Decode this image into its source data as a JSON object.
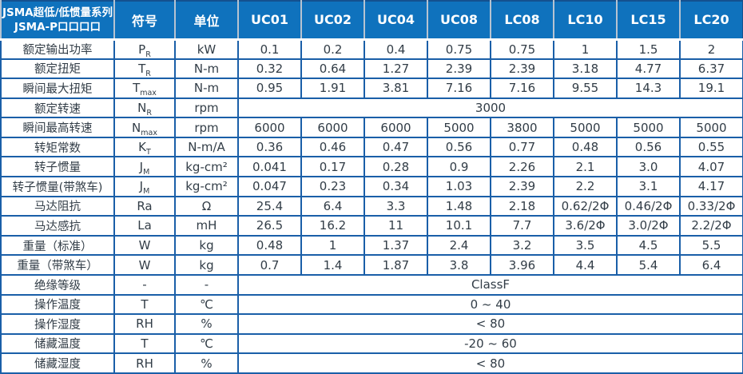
{
  "header": {
    "title_line1": "JSMA超低/低惯量系列",
    "title_line2": "JSMA-P口口口口",
    "symbol_label": "符号",
    "unit_label": "单位",
    "models": [
      "UC01",
      "UC02",
      "UC04",
      "UC08",
      "LC08",
      "LC10",
      "LC15",
      "LC20"
    ]
  },
  "colors": {
    "header_bg": "#0f72bd",
    "grid_border": "#1a5fa8",
    "outer_border": "#14518f",
    "header_divider": "#b7c3d1",
    "text": "#323d47"
  },
  "rows": [
    {
      "label": "额定输出功率",
      "symbol": "P",
      "symbol_sub": "R",
      "unit": "kW",
      "values": [
        "0.1",
        "0.2",
        "0.4",
        "0.75",
        "0.75",
        "1",
        "1.5",
        "2"
      ]
    },
    {
      "label": "额定扭矩",
      "symbol": "T",
      "symbol_sub": "R",
      "unit": "N-m",
      "values": [
        "0.32",
        "0.64",
        "1.27",
        "2.39",
        "2.39",
        "3.18",
        "4.77",
        "6.37"
      ]
    },
    {
      "label": "瞬间最大扭矩",
      "symbol": "T",
      "symbol_sub": "max",
      "unit": "N-m",
      "values": [
        "0.95",
        "1.91",
        "3.81",
        "7.16",
        "7.16",
        "9.55",
        "14.3",
        "19.1"
      ]
    },
    {
      "label": "额定转速",
      "symbol": "N",
      "symbol_sub": "R",
      "unit": "rpm",
      "merged": "3000"
    },
    {
      "label": "瞬间最高转速",
      "symbol": "N",
      "symbol_sub": "max",
      "unit": "rpm",
      "values": [
        "6000",
        "6000",
        "6000",
        "5000",
        "3800",
        "5000",
        "5000",
        "5000"
      ]
    },
    {
      "label": "转矩常数",
      "symbol": "K",
      "symbol_sub": "T",
      "unit": "N-m/A",
      "values": [
        "0.36",
        "0.46",
        "0.47",
        "0.56",
        "0.77",
        "0.48",
        "0.56",
        "0.55"
      ]
    },
    {
      "label": "转子惯量",
      "symbol": "J",
      "symbol_sub": "M",
      "unit": "kg-cm²",
      "values": [
        "0.041",
        "0.17",
        "0.28",
        "0.9",
        "2.26",
        "2.1",
        "3.0",
        "4.07"
      ]
    },
    {
      "label": "转子惯量(带煞车)",
      "symbol": "J",
      "symbol_sub": "M",
      "unit": "kg-cm²",
      "values": [
        "0.047",
        "0.23",
        "0.34",
        "1.03",
        "2.39",
        "2.2",
        "3.1",
        "4.17"
      ]
    },
    {
      "label": "马达阻抗",
      "symbol": "Ra",
      "symbol_sub": "",
      "unit": "Ω",
      "values": [
        "25.4",
        "6.4",
        "3.3",
        "1.48",
        "2.18",
        "0.62/2Φ",
        "0.46/2Φ",
        "0.33/2Φ"
      ]
    },
    {
      "label": "马达感抗",
      "symbol": "La",
      "symbol_sub": "",
      "unit": "mH",
      "values": [
        "26.5",
        "16.2",
        "11",
        "10.1",
        "7.7",
        "3.6/2Φ",
        "3.0/2Φ",
        "2.2/2Φ"
      ]
    },
    {
      "label": "重量（标准）",
      "symbol": "W",
      "symbol_sub": "",
      "unit": "kg",
      "values": [
        "0.48",
        "1",
        "1.37",
        "2.4",
        "3.2",
        "3.5",
        "4.5",
        "5.5"
      ]
    },
    {
      "label": "重量（带煞车）",
      "symbol": "W",
      "symbol_sub": "",
      "unit": "kg",
      "values": [
        "0.7",
        "1.4",
        "1.87",
        "3.8",
        "3.96",
        "4.4",
        "5.4",
        "6.4"
      ]
    },
    {
      "label": "绝缘等级",
      "symbol": "-",
      "symbol_sub": "",
      "unit": "-",
      "merged": "ClassF"
    },
    {
      "label": "操作温度",
      "symbol": "T",
      "symbol_sub": "",
      "unit": "℃",
      "merged": "0 ~ 40"
    },
    {
      "label": "操作湿度",
      "symbol": "RH",
      "symbol_sub": "",
      "unit": "%",
      "merged": "< 80"
    },
    {
      "label": "储藏温度",
      "symbol": "T",
      "symbol_sub": "",
      "unit": "℃",
      "merged": "-20 ~ 60"
    },
    {
      "label": "储藏湿度",
      "symbol": "RH",
      "symbol_sub": "",
      "unit": "%",
      "merged": "< 80"
    }
  ]
}
